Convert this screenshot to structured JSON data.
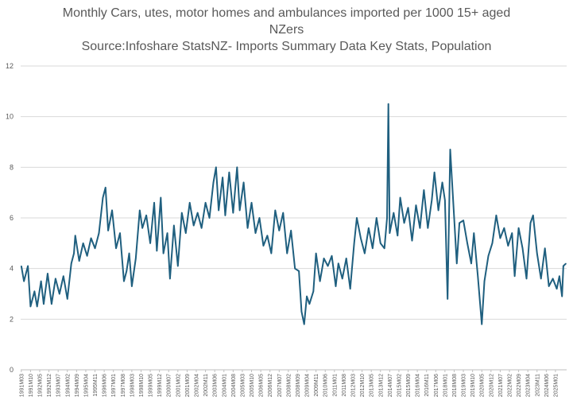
{
  "chart_data": {
    "type": "line",
    "title_lines": [
      "Monthly Cars, utes, motor homes and ambulances imported per 1000 15+ aged",
      "NZers",
      "Source:Infoshare StatsNZ- Imports Summary Data Key Stats, Population"
    ],
    "xlabel": "",
    "ylabel": "",
    "ylim": [
      0,
      12
    ],
    "y_ticks": [
      0,
      2,
      4,
      6,
      8,
      10,
      12
    ],
    "grid": "horizontal",
    "legend": "none",
    "line_color": "#1f5f7f",
    "x_start": "1991M03",
    "x_end": "2025M09",
    "x_tick_labels": [
      "1991M03",
      "1991M10",
      "1992M05",
      "1992M12",
      "1993M07",
      "1994M02",
      "1994M09",
      "1995M04",
      "1995M11",
      "1996M06",
      "1997M01",
      "1997M08",
      "1998M03",
      "1998M10",
      "1999M05",
      "1999M12",
      "2000M07",
      "2001M02",
      "2001M09",
      "2002M04",
      "2002M11",
      "2003M06",
      "2004M01",
      "2004M08",
      "2005M03",
      "2005M10",
      "2006M05",
      "2006M12",
      "2007M07",
      "2008M02",
      "2008M09",
      "2009M04",
      "2009M11",
      "2010M06",
      "2011M01",
      "2011M08",
      "2012M03",
      "2012M10",
      "2013M05",
      "2013M12",
      "2014M07",
      "2015M02",
      "2015M09",
      "2016M04",
      "2016M11",
      "2017M06",
      "2018M01",
      "2018M08",
      "2019M03",
      "2019M10",
      "2020M05",
      "2020M12",
      "2021M07",
      "2022M02",
      "2022M09",
      "2023M04",
      "2023M11",
      "2024M06",
      "2025M01"
    ],
    "anchor_points": [
      [
        "1991M03",
        4.1
      ],
      [
        "1991M05",
        3.5
      ],
      [
        "1991M08",
        4.1
      ],
      [
        "1991M10",
        2.5
      ],
      [
        "1992M01",
        3.1
      ],
      [
        "1992M03",
        2.5
      ],
      [
        "1992M06",
        3.5
      ],
      [
        "1992M08",
        2.6
      ],
      [
        "1992M11",
        3.8
      ],
      [
        "1993M02",
        2.6
      ],
      [
        "1993M05",
        3.6
      ],
      [
        "1993M08",
        3.0
      ],
      [
        "1993M11",
        3.7
      ],
      [
        "1994M02",
        2.8
      ],
      [
        "1994M05",
        4.2
      ],
      [
        "1994M07",
        4.6
      ],
      [
        "1994M08",
        5.3
      ],
      [
        "1994M11",
        4.3
      ],
      [
        "1995M02",
        5.0
      ],
      [
        "1995M05",
        4.5
      ],
      [
        "1995M08",
        5.2
      ],
      [
        "1995M11",
        4.8
      ],
      [
        "1996M02",
        5.4
      ],
      [
        "1996M05",
        6.8
      ],
      [
        "1996M07",
        7.2
      ],
      [
        "1996M09",
        5.5
      ],
      [
        "1996M12",
        6.3
      ],
      [
        "1997M03",
        4.8
      ],
      [
        "1997M06",
        5.4
      ],
      [
        "1997M09",
        3.5
      ],
      [
        "1997M11",
        3.9
      ],
      [
        "1998M01",
        4.6
      ],
      [
        "1998M03",
        3.3
      ],
      [
        "1998M06",
        4.4
      ],
      [
        "1998M09",
        6.3
      ],
      [
        "1998M11",
        5.6
      ],
      [
        "1999M02",
        6.1
      ],
      [
        "1999M05",
        5.0
      ],
      [
        "1999M08",
        6.6
      ],
      [
        "1999M10",
        4.7
      ],
      [
        "2000M01",
        6.8
      ],
      [
        "2000M03",
        4.6
      ],
      [
        "2000M06",
        5.4
      ],
      [
        "2000M08",
        3.6
      ],
      [
        "2000M11",
        5.7
      ],
      [
        "2001M02",
        4.1
      ],
      [
        "2001M05",
        6.2
      ],
      [
        "2001M08",
        5.4
      ],
      [
        "2001M11",
        6.6
      ],
      [
        "2002M02",
        5.7
      ],
      [
        "2002M05",
        6.2
      ],
      [
        "2002M08",
        5.6
      ],
      [
        "2002M11",
        6.6
      ],
      [
        "2003M02",
        6.0
      ],
      [
        "2003M05",
        7.4
      ],
      [
        "2003M07",
        8.0
      ],
      [
        "2003M09",
        6.3
      ],
      [
        "2003M12",
        7.6
      ],
      [
        "2004M02",
        6.1
      ],
      [
        "2004M05",
        7.8
      ],
      [
        "2004M08",
        6.2
      ],
      [
        "2004M11",
        8.0
      ],
      [
        "2005M01",
        6.3
      ],
      [
        "2005M04",
        7.4
      ],
      [
        "2005M07",
        5.6
      ],
      [
        "2005M10",
        6.6
      ],
      [
        "2006M01",
        5.4
      ],
      [
        "2006M04",
        6.0
      ],
      [
        "2006M07",
        4.9
      ],
      [
        "2006M10",
        5.3
      ],
      [
        "2007M01",
        4.6
      ],
      [
        "2007M04",
        6.3
      ],
      [
        "2007M07",
        5.5
      ],
      [
        "2007M10",
        6.2
      ],
      [
        "2008M01",
        4.6
      ],
      [
        "2008M04",
        5.5
      ],
      [
        "2008M07",
        4.0
      ],
      [
        "2008M10",
        3.9
      ],
      [
        "2008M12",
        2.3
      ],
      [
        "2009M02",
        1.8
      ],
      [
        "2009M04",
        2.9
      ],
      [
        "2009M06",
        2.6
      ],
      [
        "2009M09",
        3.1
      ],
      [
        "2009M11",
        4.6
      ],
      [
        "2010M02",
        3.5
      ],
      [
        "2010M05",
        4.4
      ],
      [
        "2010M08",
        4.1
      ],
      [
        "2010M11",
        4.5
      ],
      [
        "2011M02",
        3.3
      ],
      [
        "2011M04",
        4.2
      ],
      [
        "2011M07",
        3.6
      ],
      [
        "2011M10",
        4.4
      ],
      [
        "2012M01",
        3.2
      ],
      [
        "2012M04",
        5.0
      ],
      [
        "2012M06",
        6.0
      ],
      [
        "2012M09",
        5.2
      ],
      [
        "2012M12",
        4.6
      ],
      [
        "2013M03",
        5.6
      ],
      [
        "2013M06",
        4.8
      ],
      [
        "2013M09",
        6.0
      ],
      [
        "2013M12",
        5.0
      ],
      [
        "2014M03",
        4.8
      ],
      [
        "2014M05",
        6.0
      ],
      [
        "2014M06",
        10.5
      ],
      [
        "2014M07",
        5.4
      ],
      [
        "2014M10",
        6.2
      ],
      [
        "2015M01",
        5.3
      ],
      [
        "2015M03",
        6.8
      ],
      [
        "2015M06",
        5.8
      ],
      [
        "2015M09",
        6.4
      ],
      [
        "2015M12",
        5.1
      ],
      [
        "2016M03",
        6.5
      ],
      [
        "2016M06",
        5.6
      ],
      [
        "2016M09",
        7.1
      ],
      [
        "2016M12",
        5.6
      ],
      [
        "2017M03",
        6.7
      ],
      [
        "2017M05",
        7.8
      ],
      [
        "2017M08",
        6.3
      ],
      [
        "2017M11",
        7.4
      ],
      [
        "2018M01",
        6.7
      ],
      [
        "2018M03",
        2.8
      ],
      [
        "2018M05",
        8.7
      ],
      [
        "2018M08",
        6.0
      ],
      [
        "2018M10",
        4.2
      ],
      [
        "2018M12",
        5.8
      ],
      [
        "2019M03",
        5.9
      ],
      [
        "2019M06",
        5.0
      ],
      [
        "2019M09",
        4.2
      ],
      [
        "2019M11",
        5.4
      ],
      [
        "2020M02",
        3.7
      ],
      [
        "2020M05",
        1.8
      ],
      [
        "2020M07",
        3.5
      ],
      [
        "2020M10",
        4.5
      ],
      [
        "2021M01",
        5.0
      ],
      [
        "2021M04",
        6.1
      ],
      [
        "2021M07",
        5.2
      ],
      [
        "2021M10",
        5.6
      ],
      [
        "2022M01",
        4.9
      ],
      [
        "2022M04",
        5.4
      ],
      [
        "2022M06",
        3.7
      ],
      [
        "2022M09",
        5.6
      ],
      [
        "2022M12",
        4.8
      ],
      [
        "2023M03",
        3.6
      ],
      [
        "2023M06",
        5.8
      ],
      [
        "2023M08",
        6.1
      ],
      [
        "2023M11",
        4.6
      ],
      [
        "2024M02",
        3.6
      ],
      [
        "2024M05",
        4.8
      ],
      [
        "2024M08",
        3.3
      ],
      [
        "2024M11",
        3.6
      ],
      [
        "2025M02",
        3.2
      ],
      [
        "2025M04",
        3.7
      ],
      [
        "2025M06",
        2.9
      ],
      [
        "2025M07",
        4.1
      ],
      [
        "2025M09",
        4.2
      ]
    ]
  }
}
